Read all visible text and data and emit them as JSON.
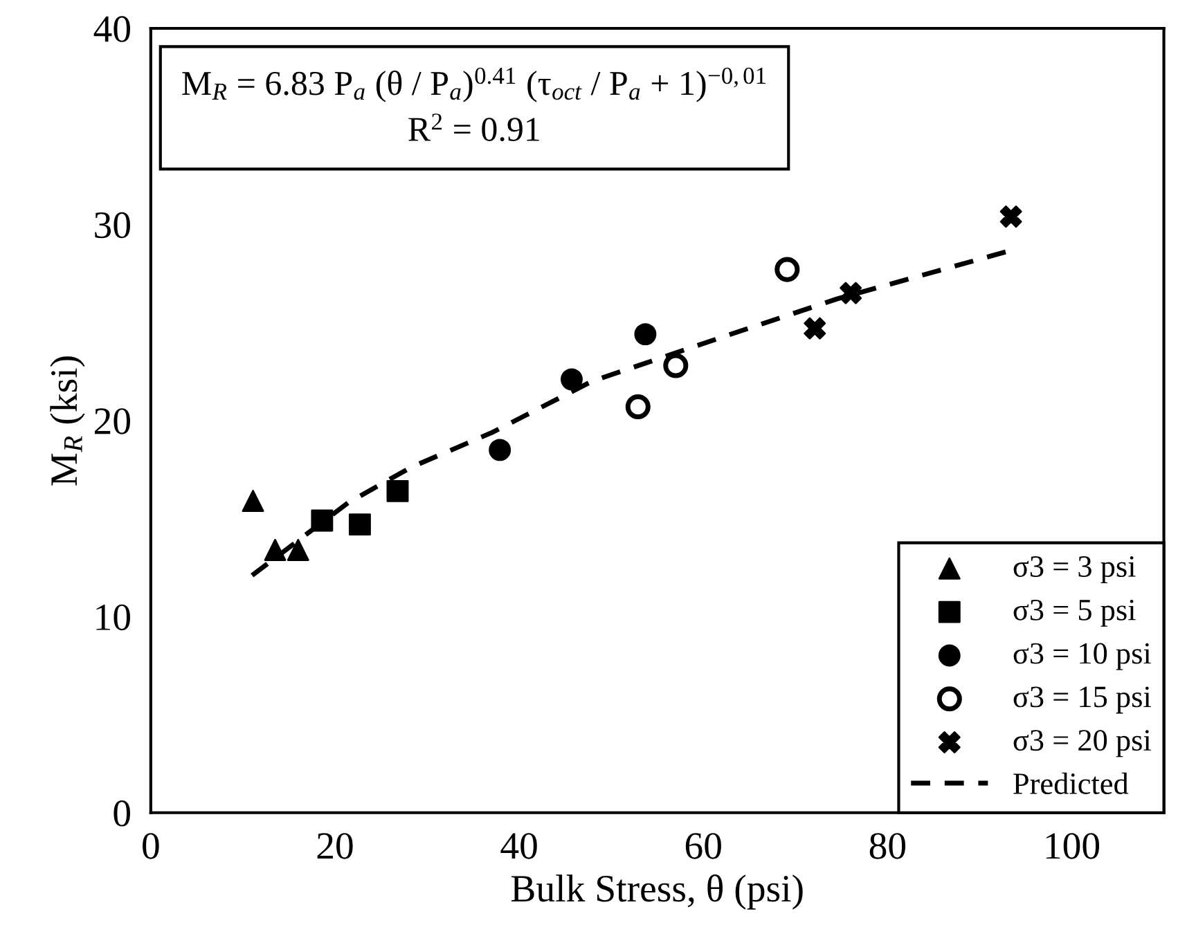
{
  "chart_data": {
    "type": "scatter",
    "xlabel": "Bulk Stress, θ (psi)",
    "ylabel": "M$_{R}$ (ksi)",
    "xlim": [
      0,
      110
    ],
    "xticks": [
      0,
      20,
      40,
      60,
      80,
      100
    ],
    "ylim": [
      0,
      40
    ],
    "yticks": [
      0,
      10,
      20,
      30,
      40
    ],
    "grid": false,
    "legend": "bottom right",
    "annotations": [
      "M$_{R}$ = 6.83 P$_{a}$ (θ / P$_{a}$)$^{0.41}$ (τ$_{oct}$ / P$_{a}$ + 1)$^{−0,01}$",
      "R$^{2}$ = 0.91"
    ],
    "series": [
      {
        "name": "σ3 = 3 psi",
        "color": "#000000",
        "marker": "triangle",
        "x": [
          11.1,
          13.5,
          16.0
        ],
        "values": [
          15.9,
          13.4,
          13.4
        ]
      },
      {
        "name": "σ3 = 5 psi",
        "color": "#000000",
        "marker": "square",
        "x": [
          18.6,
          22.7,
          26.8
        ],
        "values": [
          14.9,
          14.7,
          16.4
        ]
      },
      {
        "name": "σ3 = 10 psi",
        "color": "#000000",
        "marker": "circle",
        "x": [
          37.9,
          45.7,
          53.7
        ],
        "values": [
          18.5,
          22.1,
          24.4
        ]
      },
      {
        "name": "σ3 = 15 psi",
        "color": "#000000",
        "marker": "circle",
        "x": [
          52.9,
          57.0,
          69.1
        ],
        "values": [
          20.7,
          22.8,
          27.7
        ]
      },
      {
        "name": "σ3 = 20 psi",
        "color": "#000000",
        "marker": "cross",
        "x": [
          72.1,
          76.0,
          93.4
        ],
        "values": [
          24.7,
          26.5,
          30.4
        ]
      },
      {
        "name": "Predicted",
        "type": "line",
        "color": "#000000",
        "line_style": "dashed",
        "marker": "none",
        "x": [
          11.0,
          21.4,
          28.2,
          37.1,
          47.9,
          61.7,
          74.5,
          93.6
        ],
        "values": [
          12.1,
          15.8,
          17.6,
          19.4,
          22.0,
          24.2,
          26.2,
          28.7
        ]
      }
    ]
  }
}
